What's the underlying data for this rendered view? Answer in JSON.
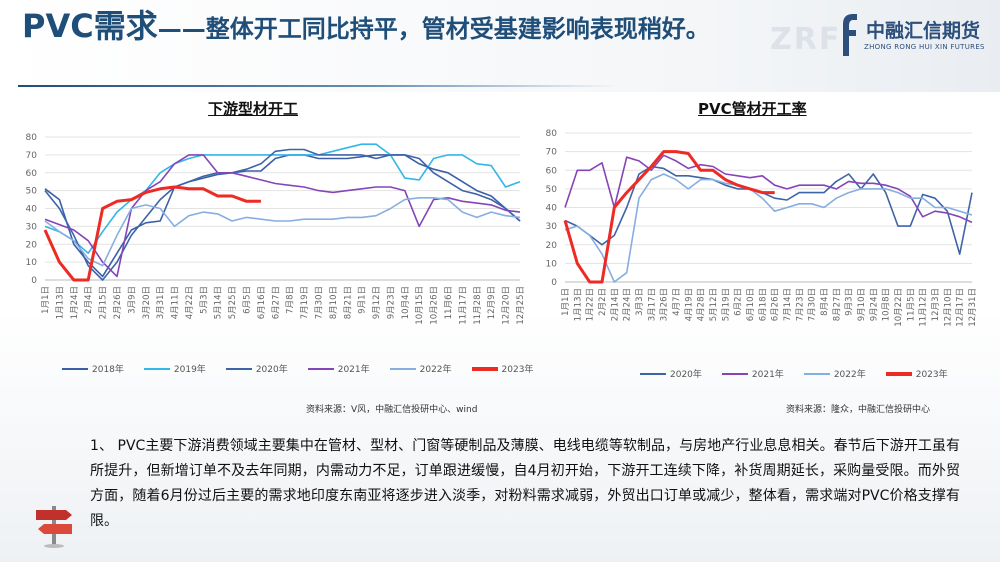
{
  "title": {
    "main": "PVC需求",
    "rest": "——整体开工同比持平，管材受基建影响表现稍好。"
  },
  "logo": {
    "watermark": "ZRF",
    "cn": "中融汇信期货",
    "en": "ZHONG RONG HUI XIN FUTURES"
  },
  "colors": {
    "title": "#1f4e79",
    "s2018": "#3a5fa8",
    "s2019": "#33b6e8",
    "s2020": "#3e64a8",
    "s2021": "#8545b8",
    "s2022": "#87aee0",
    "s2023": "#ee2a24"
  },
  "chart_data": [
    {
      "type": "line",
      "title": "下游型材开工",
      "ylim": [
        0,
        80
      ],
      "yticks": [
        0,
        10,
        20,
        30,
        40,
        50,
        60,
        70,
        80
      ],
      "grid": true,
      "legend_position": "bottom",
      "xticks": [
        "1月1日",
        "1月13日",
        "1月24日",
        "2月4日",
        "2月15日",
        "2月26日",
        "3月9日",
        "3月20日",
        "3月31日",
        "4月11日",
        "4月22日",
        "5月3日",
        "5月14日",
        "5月25日",
        "6月5日",
        "6月16日",
        "6月27日",
        "7月8日",
        "7月19日",
        "7月30日",
        "8月10日",
        "8月21日",
        "9月1日",
        "9月12日",
        "9月23日",
        "10月4日",
        "10月15日",
        "10月26日",
        "11月6日",
        "11月17日",
        "11月28日",
        "12月9日",
        "12月20日",
        "12月25日"
      ],
      "series": [
        {
          "name": "2018年",
          "color": "#3a5fa8",
          "x": [
            0,
            1,
            2,
            3,
            4,
            5,
            6,
            7,
            8,
            9,
            10,
            11,
            12,
            13,
            14,
            15,
            16,
            17,
            18,
            19,
            20,
            21,
            22,
            23,
            24,
            25,
            26,
            27,
            28,
            29,
            30,
            31,
            32,
            33
          ],
          "values": [
            51,
            45,
            20,
            10,
            2,
            15,
            28,
            32,
            33,
            52,
            55,
            57,
            59,
            60,
            61,
            61,
            68,
            70,
            70,
            68,
            68,
            68,
            69,
            70,
            70,
            70,
            65,
            62,
            60,
            55,
            50,
            47,
            40,
            33
          ]
        },
        {
          "name": "2019年",
          "color": "#33b6e8",
          "x": [
            0,
            1,
            2,
            3,
            4,
            5,
            6,
            7,
            8,
            9,
            10,
            11,
            12,
            13,
            14,
            15,
            16,
            17,
            18,
            19,
            20,
            21,
            22,
            23,
            24,
            25,
            26,
            27,
            28,
            29,
            30,
            31,
            32,
            33
          ],
          "values": [
            30,
            27,
            22,
            15,
            27,
            38,
            45,
            50,
            60,
            65,
            68,
            70,
            70,
            70,
            70,
            70,
            70,
            70,
            70,
            70,
            72,
            74,
            76,
            76,
            70,
            57,
            56,
            68,
            70,
            70,
            65,
            64,
            52,
            55
          ]
        },
        {
          "name": "2020年",
          "color": "#3e64a8",
          "x": [
            0,
            1,
            2,
            3,
            4,
            5,
            6,
            7,
            8,
            9,
            10,
            11,
            12,
            13,
            14,
            15,
            16,
            17,
            18,
            19,
            20,
            21,
            22,
            23,
            24,
            25,
            26,
            27,
            28,
            29,
            30,
            31,
            32,
            33
          ],
          "values": [
            50,
            40,
            25,
            8,
            0,
            10,
            25,
            35,
            45,
            52,
            55,
            58,
            60,
            60,
            62,
            65,
            72,
            73,
            73,
            70,
            70,
            70,
            70,
            68,
            70,
            70,
            68,
            60,
            55,
            50,
            48,
            45,
            40,
            33
          ]
        },
        {
          "name": "2021年",
          "color": "#8545b8",
          "x": [
            0,
            1,
            2,
            3,
            4,
            5,
            6,
            7,
            8,
            9,
            10,
            11,
            12,
            13,
            14,
            15,
            16,
            17,
            18,
            19,
            20,
            21,
            22,
            23,
            24,
            25,
            26,
            27,
            28,
            29,
            30,
            31,
            32,
            33
          ],
          "values": [
            34,
            31,
            28,
            22,
            10,
            2,
            40,
            50,
            55,
            65,
            70,
            70,
            60,
            60,
            58,
            56,
            54,
            53,
            52,
            50,
            49,
            50,
            51,
            52,
            52,
            50,
            30,
            45,
            46,
            44,
            43,
            42,
            39,
            38
          ]
        },
        {
          "name": "2022年",
          "color": "#87aee0",
          "x": [
            0,
            1,
            2,
            3,
            4,
            5,
            6,
            7,
            8,
            9,
            10,
            11,
            12,
            13,
            14,
            15,
            16,
            17,
            18,
            19,
            20,
            21,
            22,
            23,
            24,
            25,
            26,
            27,
            28,
            29,
            30,
            31,
            32,
            33
          ],
          "values": [
            33,
            27,
            22,
            12,
            8,
            25,
            40,
            42,
            40,
            30,
            36,
            38,
            37,
            33,
            35,
            34,
            33,
            33,
            34,
            34,
            34,
            35,
            35,
            36,
            40,
            45,
            46,
            46,
            45,
            38,
            35,
            38,
            36,
            35
          ]
        },
        {
          "name": "2023年",
          "color": "#ee2a24",
          "x": [
            0,
            1,
            2,
            3,
            4,
            5,
            6,
            7,
            8,
            9,
            10,
            11,
            12,
            13,
            14,
            15
          ],
          "values": [
            28,
            10,
            0,
            0,
            40,
            44,
            45,
            49,
            51,
            52,
            51,
            51,
            47,
            47,
            44,
            44
          ]
        }
      ]
    },
    {
      "type": "line",
      "title": "PVC管材开工率",
      "ylim": [
        0,
        80
      ],
      "yticks": [
        0,
        10,
        20,
        30,
        40,
        50,
        60,
        70,
        80
      ],
      "grid": true,
      "legend_position": "bottom",
      "xticks": [
        "1月1日",
        "1月13日",
        "1月22日",
        "2月2日",
        "2月14日",
        "2月24日",
        "3月3日",
        "3月17日",
        "3月26日",
        "4月7日",
        "4月19日",
        "4月28日",
        "5月12日",
        "5月19日",
        "6月2日",
        "6月10日",
        "6月18日",
        "6月26日",
        "7月14日",
        "7月23日",
        "7月30日",
        "8月4日",
        "8月27日",
        "9月3日",
        "9月10日",
        "9月24日",
        "10月8日",
        "10月22日",
        "11月5日",
        "11月12日",
        "12月3日",
        "12月10日",
        "12月17日",
        "12月31日"
      ],
      "series": [
        {
          "name": "2020年",
          "color": "#3e64a8",
          "x": [
            0,
            1,
            2,
            3,
            4,
            5,
            6,
            7,
            8,
            9,
            10,
            11,
            12,
            13,
            14,
            15,
            16,
            17,
            18,
            19,
            20,
            21,
            22,
            23,
            24,
            25,
            26,
            27,
            28,
            29,
            30,
            31,
            32,
            33
          ],
          "values": [
            33,
            30,
            25,
            20,
            25,
            40,
            58,
            62,
            61,
            57,
            57,
            56,
            55,
            52,
            50,
            50,
            48,
            45,
            44,
            48,
            48,
            48,
            54,
            58,
            50,
            58,
            48,
            30,
            30,
            47,
            45,
            38,
            15,
            48
          ]
        },
        {
          "name": "2021年",
          "color": "#8545b8",
          "x": [
            0,
            1,
            2,
            3,
            4,
            5,
            6,
            7,
            8,
            9,
            10,
            11,
            12,
            13,
            14,
            15,
            16,
            17,
            18,
            19,
            20,
            21,
            22,
            23,
            24,
            25,
            26,
            27,
            28,
            29,
            30,
            31,
            32,
            33
          ],
          "values": [
            40,
            60,
            60,
            64,
            40,
            67,
            65,
            60,
            68,
            65,
            61,
            63,
            62,
            58,
            57,
            56,
            57,
            52,
            50,
            52,
            52,
            52,
            50,
            54,
            53,
            53,
            52,
            50,
            46,
            35,
            38,
            37,
            35,
            32
          ]
        },
        {
          "name": "2022年",
          "color": "#87aee0",
          "x": [
            0,
            1,
            2,
            3,
            4,
            5,
            6,
            7,
            8,
            9,
            10,
            11,
            12,
            13,
            14,
            15,
            16,
            17,
            18,
            19,
            20,
            21,
            22,
            23,
            24,
            25,
            26,
            27,
            28,
            29,
            30,
            31,
            32,
            33
          ],
          "values": [
            28,
            30,
            25,
            15,
            0,
            5,
            45,
            55,
            58,
            55,
            50,
            55,
            55,
            53,
            52,
            50,
            45,
            38,
            40,
            42,
            42,
            40,
            45,
            48,
            50,
            50,
            50,
            48,
            45,
            45,
            40,
            40,
            38,
            36
          ]
        },
        {
          "name": "2023年",
          "color": "#ee2a24",
          "x": [
            0,
            1,
            2,
            3,
            4,
            5,
            6,
            7,
            8,
            9,
            10,
            11,
            12,
            13,
            14,
            15,
            16,
            17
          ],
          "values": [
            33,
            10,
            0,
            0,
            40,
            48,
            55,
            62,
            70,
            70,
            69,
            60,
            60,
            55,
            52,
            50,
            48,
            48
          ]
        }
      ]
    }
  ],
  "sources": [
    "资料来源：V风，中融汇信投研中心、wind",
    "资料来源：隆众，中融汇信投研中心"
  ],
  "body": "1、 PVC主要下游消费领域主要集中在管材、型材、门窗等硬制品及薄膜、电线电缆等软制品，与房地产行业息息相关。春节后下游开工虽有所提升，但新增订单不及去年同期，内需动力不足，订单跟进缓慢，自4月初开始，下游开工连续下降，补货周期延长，采购量受限。而外贸方面，随着6月份过后主要的需求地印度东南亚将逐步进入淡季，对粉料需求减弱，外贸出口订单或减少，整体看，需求端对PVC价格支撑有限。"
}
